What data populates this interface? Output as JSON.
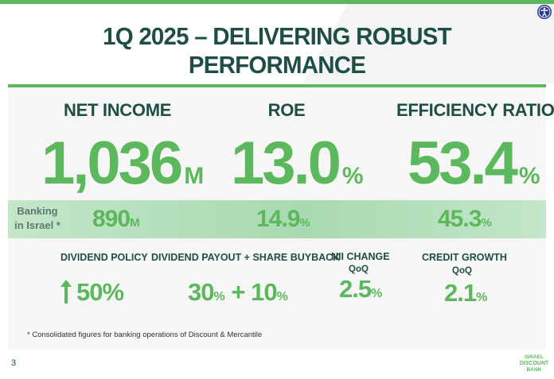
{
  "slide": {
    "title": "1Q 2025 – DELIVERING ROBUST PERFORMANCE",
    "page_number": "3",
    "footnote": "*  Consolidated figures for banking operations of Discount & Mercantile"
  },
  "kpis": [
    {
      "label": "NET INCOME",
      "value": "1,036",
      "unit": "M"
    },
    {
      "label": "ROE",
      "value": "13.0",
      "unit": "%"
    },
    {
      "label": "EFFICIENCY RATIO",
      "value": "53.4",
      "unit": "%"
    }
  ],
  "banking_israel": {
    "label": "Banking in Israel *",
    "values": [
      {
        "value": "890",
        "unit": "M"
      },
      {
        "value": "14.9",
        "unit": "%"
      },
      {
        "value": "45.3",
        "unit": "%"
      }
    ]
  },
  "metrics": {
    "dividend_policy": {
      "label": "DIVIDEND POLICY",
      "value": "50%",
      "direction": "up"
    },
    "payout": {
      "label": "DIVIDEND PAYOUT + SHARE BUYBACK",
      "value1": "30",
      "unit1": "%",
      "plus": "+",
      "value2": "10",
      "unit2": "%"
    },
    "nii": {
      "label": "NII CHANGE",
      "sublabel": "QoQ",
      "value": "2.5",
      "unit": "%"
    },
    "credit": {
      "label": "CREDIT GROWTH",
      "sublabel": "QoQ",
      "value": "2.1",
      "unit": "%"
    }
  },
  "logo": {
    "line1": "ISRAEL",
    "line2": "DISCOUNT",
    "line3": "BANK"
  },
  "colors": {
    "accent": "#5cb85c",
    "dark": "#1f4e45",
    "band": "#b5dfbb"
  }
}
